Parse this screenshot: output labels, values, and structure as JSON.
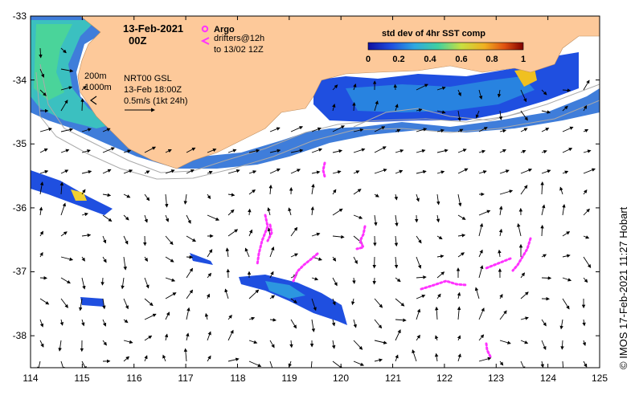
{
  "date_title": "13-Feb-2021",
  "time_title": "00Z",
  "argo_label": "Argo",
  "drifters_label_1": "drifters@12h",
  "drifters_label_2": "to 13/02 12Z",
  "colorbar": {
    "title": "std dev of 4hr SST comp",
    "ticks": [
      "0",
      "0.2",
      "0.4",
      "0.6",
      "0.8",
      "1"
    ]
  },
  "isobaths": [
    "200m",
    "1000m"
  ],
  "current_info": [
    "NRT00 GSL",
    "13-Feb 18:00Z",
    "0.5m/s (1kt 24h)"
  ],
  "credit": "© IMOS 17-Feb-2021 11:27 Hobart",
  "axes": {
    "x_ticks": [
      "114",
      "115",
      "116",
      "117",
      "118",
      "119",
      "120",
      "121",
      "122",
      "123",
      "124",
      "125"
    ],
    "y_ticks": [
      "-33",
      "-34",
      "-35",
      "-36",
      "-37",
      "-38"
    ]
  },
  "colors": {
    "land": "#fdc99a",
    "drifter": "#ff33ff",
    "sst_low": "#1a3fd0",
    "sst_mid": "#2fb7c9",
    "sst_high": "#a01010"
  }
}
